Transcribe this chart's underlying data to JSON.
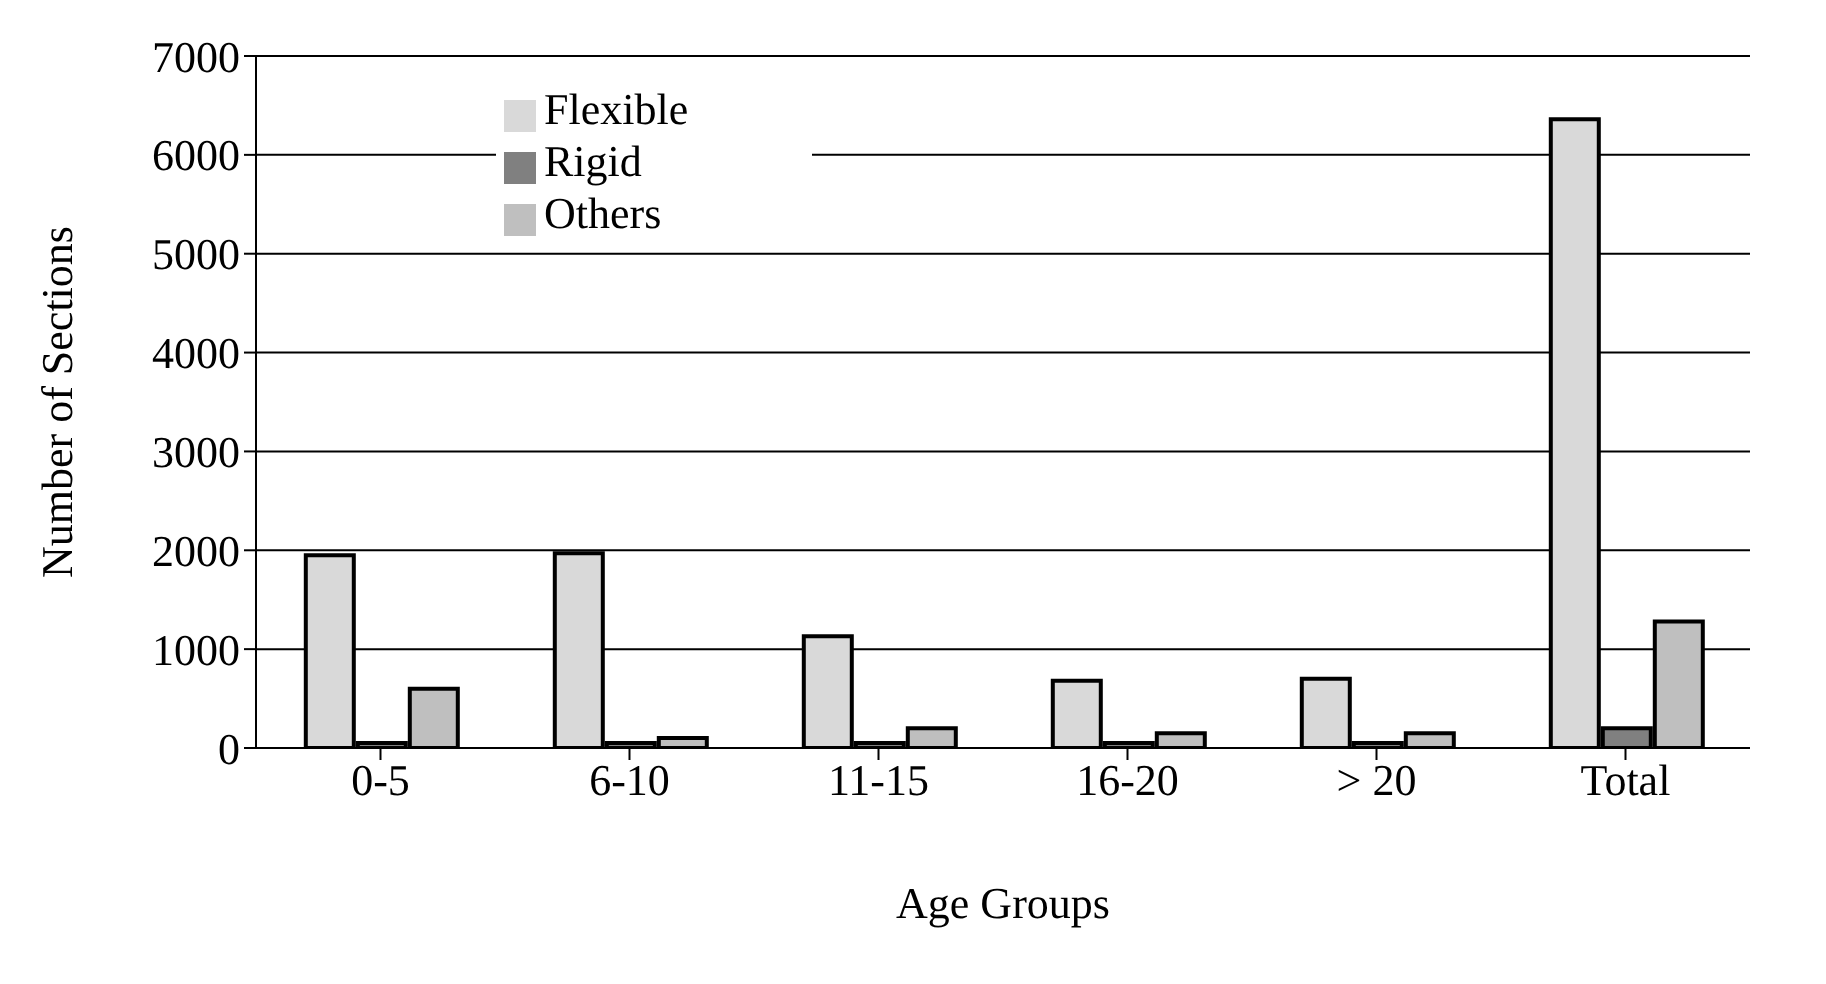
{
  "chart_data": {
    "type": "bar",
    "xlabel": "Age Groups",
    "ylabel": "Number of Sections",
    "categories": [
      "0-5",
      "6-10",
      "11-15",
      "16-20",
      "> 20",
      "Total"
    ],
    "series": [
      {
        "name": "Flexible",
        "color": "#d9d9d9",
        "values": [
          1950,
          1970,
          1130,
          680,
          700,
          6360
        ]
      },
      {
        "name": "Rigid",
        "color": "#808080",
        "values": [
          50,
          50,
          50,
          50,
          50,
          200
        ]
      },
      {
        "name": "Others",
        "color": "#bfbfbf",
        "values": [
          600,
          100,
          200,
          150,
          150,
          1280
        ]
      }
    ],
    "ylim": [
      0,
      7000
    ],
    "yticks": [
      0,
      1000,
      2000,
      3000,
      4000,
      5000,
      6000,
      7000
    ],
    "grid": "y",
    "legend": "top left"
  }
}
